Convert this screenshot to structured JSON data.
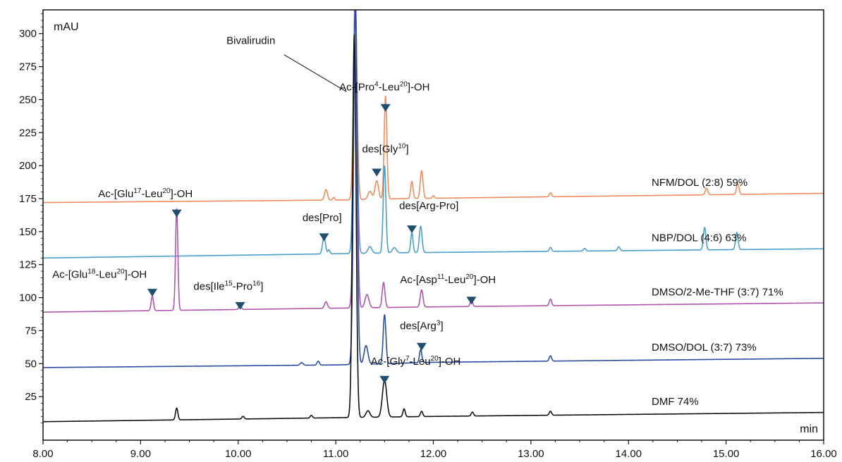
{
  "chart_data": {
    "type": "line",
    "ylabel": "mAU",
    "xlabel": "min",
    "xlim": [
      8.0,
      16.0
    ],
    "ylim": [
      -8,
      318
    ],
    "xticks": [
      "8.00",
      "9.00",
      "10.00",
      "11.00",
      "12.00",
      "13.00",
      "14.00",
      "15.00",
      "16.00"
    ],
    "yticks": [
      "25",
      "50",
      "75",
      "100",
      "125",
      "150",
      "175",
      "200",
      "225",
      "250",
      "275",
      "300"
    ],
    "legend": "right",
    "grid": false,
    "series": [
      {
        "name": "NFM/DOL (2:8)",
        "yield": "59%",
        "color": "#F28A5B",
        "baseline": [
          [
            8.0,
            172
          ],
          [
            11.1,
            174
          ],
          [
            11.7,
            175
          ],
          [
            16.0,
            179
          ]
        ],
        "peaks": [
          [
            10.9,
            8,
            0.015
          ],
          [
            10.98,
            2,
            0.01
          ],
          [
            11.2,
            150,
            0.018
          ],
          [
            11.35,
            6,
            0.02
          ],
          [
            11.42,
            14,
            0.018
          ],
          [
            11.51,
            78,
            0.014
          ],
          [
            11.78,
            13,
            0.012
          ],
          [
            11.88,
            21,
            0.014
          ],
          [
            12.0,
            2,
            0.01
          ],
          [
            13.2,
            3,
            0.012
          ],
          [
            14.8,
            5,
            0.013
          ],
          [
            15.12,
            8,
            0.013
          ]
        ]
      },
      {
        "name": "NBP/DOL (4:6)",
        "yield": "63%",
        "color": "#4A9FCA",
        "baseline": [
          [
            8.0,
            130
          ],
          [
            10.8,
            133
          ],
          [
            11.7,
            134
          ],
          [
            16.0,
            137
          ]
        ],
        "peaks": [
          [
            10.88,
            13,
            0.015
          ],
          [
            10.93,
            3,
            0.01
          ],
          [
            11.2,
            200,
            0.018
          ],
          [
            11.35,
            5,
            0.02
          ],
          [
            11.5,
            66,
            0.014
          ],
          [
            11.6,
            4,
            0.02
          ],
          [
            11.78,
            15,
            0.012
          ],
          [
            11.87,
            20,
            0.014
          ],
          [
            13.2,
            3,
            0.012
          ],
          [
            13.55,
            2,
            0.012
          ],
          [
            13.9,
            3,
            0.012
          ],
          [
            14.78,
            17,
            0.013
          ],
          [
            15.11,
            13,
            0.013
          ]
        ]
      },
      {
        "name": "DMSO/2-Me-THF (3:7)",
        "yield": "71%",
        "color": "#B055AC",
        "baseline": [
          [
            8.0,
            89
          ],
          [
            11.0,
            92
          ],
          [
            12.0,
            93
          ],
          [
            16.0,
            96
          ]
        ],
        "peaks": [
          [
            9.12,
            11,
            0.012
          ],
          [
            9.37,
            77,
            0.012
          ],
          [
            10.02,
            4,
            0.012
          ],
          [
            10.9,
            5,
            0.015
          ],
          [
            11.2,
            240,
            0.018
          ],
          [
            11.32,
            10,
            0.02
          ],
          [
            11.49,
            19,
            0.014
          ],
          [
            11.88,
            13,
            0.014
          ],
          [
            12.39,
            5,
            0.012
          ],
          [
            13.2,
            5,
            0.012
          ]
        ]
      },
      {
        "name": "DMSO/DOL (3:7)",
        "yield": "73%",
        "color": "#2A4DA0",
        "baseline": [
          [
            8.0,
            47
          ],
          [
            11.0,
            49
          ],
          [
            12.0,
            51
          ],
          [
            16.0,
            54
          ]
        ],
        "peaks": [
          [
            10.65,
            2,
            0.015
          ],
          [
            10.82,
            3,
            0.012
          ],
          [
            11.2,
            270,
            0.018
          ],
          [
            11.31,
            14,
            0.02
          ],
          [
            11.5,
            37,
            0.014
          ],
          [
            11.87,
            10,
            0.012
          ],
          [
            13.2,
            4,
            0.012
          ]
        ]
      },
      {
        "name": "DMF",
        "yield": "74%",
        "color": "#111111",
        "baseline": [
          [
            8.0,
            6
          ],
          [
            11.0,
            9
          ],
          [
            12.0,
            10
          ],
          [
            16.0,
            13
          ]
        ],
        "peaks": [
          [
            9.37,
            9,
            0.012
          ],
          [
            10.05,
            2,
            0.012
          ],
          [
            10.75,
            2,
            0.012
          ],
          [
            11.19,
            290,
            0.018
          ],
          [
            11.33,
            5,
            0.02
          ],
          [
            11.5,
            28,
            0.022
          ],
          [
            11.7,
            6,
            0.012
          ],
          [
            11.88,
            4,
            0.012
          ],
          [
            12.4,
            3,
            0.012
          ],
          [
            13.2,
            3,
            0.012
          ]
        ]
      }
    ],
    "annotations": [
      {
        "parts": [
          [
            "Bivalirudin",
            ""
          ]
        ],
        "anchor": "end",
        "x": 10.38,
        "y": 292,
        "leader": [
          [
            10.47,
            284
          ],
          [
            11.11,
            256
          ]
        ],
        "marker": false
      },
      {
        "parts": [
          [
            "Ac-[Pro",
            ""
          ],
          [
            "4",
            "sup"
          ],
          [
            "-Leu",
            ""
          ],
          [
            "20",
            "sup"
          ],
          [
            "]-OH",
            ""
          ]
        ],
        "anchor": "middle",
        "x": 11.5,
        "y": 257,
        "marker": true,
        "mx": 11.51,
        "my": 244
      },
      {
        "parts": [
          [
            "des[Gly",
            ""
          ],
          [
            "10",
            "sup"
          ],
          [
            "]",
            ""
          ]
        ],
        "anchor": "start",
        "x": 11.27,
        "y": 210,
        "marker": true,
        "mx": 11.42,
        "my": 195
      },
      {
        "parts": [
          [
            "Ac-[Glu",
            ""
          ],
          [
            "17",
            "sup"
          ],
          [
            "-Leu",
            ""
          ],
          [
            "20",
            "sup"
          ],
          [
            "]-OH",
            ""
          ]
        ],
        "anchor": "middle",
        "x": 9.05,
        "y": 176,
        "marker": true,
        "mx": 9.37,
        "my": 164
      },
      {
        "parts": [
          [
            "des[Pro]",
            ""
          ]
        ],
        "anchor": "middle",
        "x": 10.86,
        "y": 158,
        "marker": true,
        "mx": 10.88,
        "my": 146
      },
      {
        "parts": [
          [
            "des[Arg-Pro]",
            ""
          ]
        ],
        "anchor": "start",
        "x": 11.65,
        "y": 167,
        "marker": true,
        "mx": 11.78,
        "my": 152
      },
      {
        "parts": [
          [
            "Ac-[Glu",
            ""
          ],
          [
            "18",
            "sup"
          ],
          [
            "-Leu",
            ""
          ],
          [
            "20",
            "sup"
          ],
          [
            "]-OH",
            ""
          ]
        ],
        "anchor": "middle",
        "x": 8.58,
        "y": 115,
        "marker": true,
        "mx": 9.12,
        "my": 104
      },
      {
        "parts": [
          [
            "des[Ile",
            ""
          ],
          [
            "15",
            "sup"
          ],
          [
            "-Pro",
            ""
          ],
          [
            "16",
            "sup"
          ],
          [
            "]",
            ""
          ]
        ],
        "anchor": "middle",
        "x": 9.9,
        "y": 106,
        "marker": true,
        "mx": 10.02,
        "my": 94
      },
      {
        "parts": [
          [
            "Ac-[Asp",
            ""
          ],
          [
            "11",
            "sup"
          ],
          [
            "-Leu",
            ""
          ],
          [
            "20",
            "sup"
          ],
          [
            "]-OH",
            ""
          ]
        ],
        "anchor": "middle",
        "x": 12.15,
        "y": 111,
        "marker": true,
        "mx": 12.39,
        "my": 98
      },
      {
        "parts": [
          [
            "des[Arg",
            ""
          ],
          [
            "3",
            "sup"
          ],
          [
            "]",
            ""
          ]
        ],
        "anchor": "middle",
        "x": 11.88,
        "y": 76,
        "marker": true,
        "mx": 11.88,
        "my": 63
      },
      {
        "parts": [
          [
            "Ac-[Gly",
            ""
          ],
          [
            "7",
            "sup"
          ],
          [
            "-Leu",
            ""
          ],
          [
            "20",
            "sup"
          ],
          [
            "]-OH",
            ""
          ]
        ],
        "anchor": "middle",
        "x": 11.82,
        "y": 49,
        "marker": true,
        "mx": 11.5,
        "my": 38
      }
    ]
  }
}
